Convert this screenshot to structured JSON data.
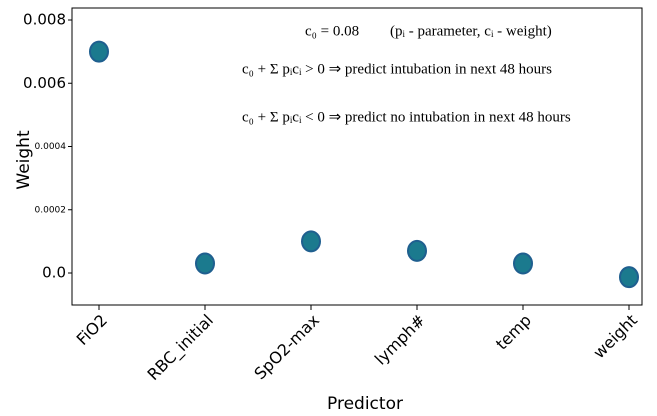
{
  "chart_data": {
    "type": "scatter",
    "x_label": "Predictor",
    "y_label": "Weight",
    "categories": [
      "FiO2",
      "RBC_initial",
      "SpO2-max",
      "lymph#",
      "temp",
      "weight"
    ],
    "values": [
      0.007,
      3e-05,
      0.0001,
      7e-05,
      3e-05,
      -1.3e-05
    ],
    "color": "#1b7a8e",
    "edge_color": "#1f5f8f",
    "ylim": [
      -0.0001,
      0.0085
    ],
    "yticks": [
      {
        "value": 0,
        "label": "0.0"
      },
      0.0002,
      0.0004,
      0.006,
      0.008
    ],
    "annotations": [
      "c₀ = 0.08",
      "(pᵢ - parameter, cᵢ - weight)",
      "c₀ + Σ pᵢcᵢ > 0 ⇒ predict intubation in next 48 hours",
      "c₀ + Σ pᵢcᵢ < 0 ⇒ predict no intubation in next 48 hours"
    ]
  }
}
